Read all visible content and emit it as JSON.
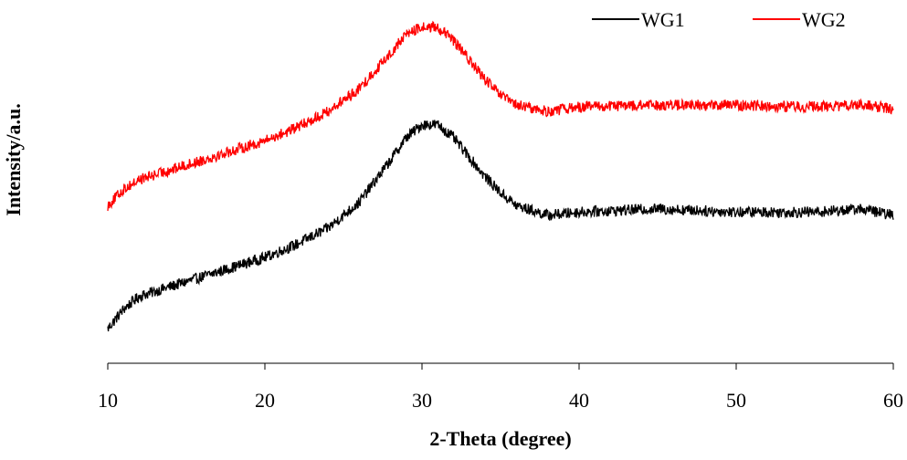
{
  "chart_data": {
    "type": "line",
    "title": "",
    "xlabel": "2-Theta (degree)",
    "ylabel": "Intensity/a.u.",
    "xlim": [
      10,
      60
    ],
    "x_ticks": [
      "10",
      "20",
      "30",
      "40",
      "50",
      "60"
    ],
    "ylim": [
      0,
      1000
    ],
    "y_ticks_shown": false,
    "grid": false,
    "legend_position": "top-right",
    "x_sampled": [
      10,
      11,
      12,
      14,
      16,
      18,
      20,
      22,
      24,
      26,
      28,
      29,
      30,
      31,
      32,
      33,
      34,
      35,
      36,
      38,
      40,
      45,
      50,
      55,
      58,
      60
    ],
    "series": [
      {
        "name": "WG1",
        "color": "#000000",
        "values": [
          70,
          130,
          170,
          200,
          230,
          260,
          290,
          330,
          380,
          460,
          590,
          660,
          700,
          700,
          660,
          600,
          540,
          490,
          450,
          420,
          430,
          440,
          430,
          430,
          440,
          420
        ]
      },
      {
        "name": "WG2",
        "color": "#ff0000",
        "values": [
          450,
          500,
          530,
          560,
          590,
          620,
          650,
          690,
          740,
          810,
          920,
          980,
          1000,
          1000,
          960,
          900,
          840,
          790,
          760,
          740,
          755,
          760,
          760,
          755,
          760,
          750
        ]
      }
    ]
  }
}
